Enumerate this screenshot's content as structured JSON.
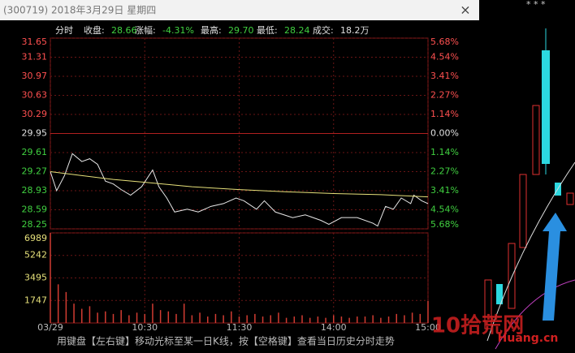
{
  "window": {
    "title": "(300719) 2018年3月29日 星期四",
    "close": "×"
  },
  "chart_data": {
    "type": "line",
    "mode": "分时",
    "stats": [
      {
        "label": "收盘:",
        "value": "28.66"
      },
      {
        "label": "涨幅:",
        "value": "-4.31%"
      },
      {
        "label": "最高:",
        "value": "29.70"
      },
      {
        "label": "最低:",
        "value": "28.24"
      },
      {
        "label": "成交:",
        "value": "18.2万"
      }
    ],
    "xlim": [
      0,
      240
    ],
    "xticks": [
      {
        "value": 0,
        "label": "03/29"
      },
      {
        "value": 60,
        "label": "10:30"
      },
      {
        "value": 120,
        "label": "11:30"
      },
      {
        "value": 180,
        "label": "14:00"
      },
      {
        "value": 240,
        "label": "15:00"
      }
    ],
    "ylim": [
      28.25,
      31.65
    ],
    "yticks": [
      31.65,
      31.31,
      30.97,
      30.63,
      30.29,
      29.95,
      29.61,
      29.27,
      28.93,
      28.59,
      28.25
    ],
    "y2lim": [
      -5.68,
      5.68
    ],
    "y2ticks": [
      {
        "value": 5.68,
        "label": "5.68%"
      },
      {
        "value": 4.54,
        "label": "4.54%"
      },
      {
        "value": 3.41,
        "label": "3.41%"
      },
      {
        "value": 2.27,
        "label": "2.27%"
      },
      {
        "value": 1.14,
        "label": "1.14%"
      },
      {
        "value": 0,
        "label": "0.00%"
      },
      {
        "value": -1.14,
        "label": "1.14%"
      },
      {
        "value": -2.27,
        "label": "2.27%"
      },
      {
        "value": -3.41,
        "label": "3.41%"
      },
      {
        "value": -4.54,
        "label": "4.54%"
      },
      {
        "value": -5.68,
        "label": "5.68%"
      }
    ],
    "grid": true,
    "series": [
      {
        "color": "#e8e8e8",
        "x": [
          0,
          4,
          9,
          14,
          20,
          25,
          30,
          35,
          40,
          45,
          51,
          58,
          65,
          69,
          74,
          79,
          87,
          94,
          102,
          110,
          118,
          123,
          131,
          136,
          143,
          154,
          162,
          172,
          177,
          185,
          195,
          205,
          208,
          213,
          218,
          223,
          229,
          231,
          236,
          240
        ],
        "values": [
          29.27,
          28.93,
          29.2,
          29.59,
          29.45,
          29.5,
          29.4,
          29.1,
          29.05,
          28.95,
          28.85,
          29.0,
          29.3,
          29.0,
          28.8,
          28.55,
          28.6,
          28.55,
          28.65,
          28.7,
          28.8,
          28.75,
          28.6,
          28.75,
          28.55,
          28.45,
          28.5,
          28.4,
          28.33,
          28.45,
          28.45,
          28.35,
          28.3,
          28.65,
          28.6,
          28.8,
          28.7,
          28.85,
          28.75,
          28.7
        ]
      },
      {
        "color": "#e6e07a",
        "x": [
          0,
          20,
          40,
          60,
          90,
          120,
          150,
          180,
          210,
          240
        ],
        "values": [
          29.27,
          29.2,
          29.13,
          29.08,
          29.0,
          28.95,
          28.91,
          28.88,
          28.86,
          28.82
        ]
      }
    ],
    "volume": {
      "color": "#d23c32",
      "ylim": [
        0,
        6989
      ],
      "yticks": [
        6989,
        5242,
        3495,
        1747
      ],
      "x": [
        0,
        5,
        10,
        15,
        20,
        25,
        30,
        35,
        40,
        45,
        50,
        55,
        60,
        65,
        70,
        75,
        80,
        85,
        90,
        95,
        100,
        105,
        110,
        115,
        120,
        125,
        130,
        135,
        140,
        145,
        150,
        155,
        160,
        165,
        170,
        175,
        180,
        185,
        190,
        195,
        200,
        205,
        210,
        215,
        220,
        225,
        230,
        235,
        240
      ],
      "values": [
        6989,
        3000,
        2400,
        1500,
        1100,
        1300,
        800,
        900,
        700,
        1000,
        600,
        800,
        700,
        1500,
        1000,
        900,
        700,
        1500,
        600,
        800,
        500,
        700,
        600,
        900,
        500,
        600,
        700,
        500,
        600,
        800,
        400,
        500,
        600,
        400,
        500,
        400,
        600,
        500,
        400,
        500,
        500,
        600,
        400,
        500,
        700,
        600,
        800,
        700,
        1700
      ]
    }
  },
  "watermark": {
    "brand": "10拾荒网",
    "site": "Huang.cn"
  },
  "footer": "用键盘【左右键】移动光标至某一日K线，按【空格键】查看当日历史分时走势"
}
